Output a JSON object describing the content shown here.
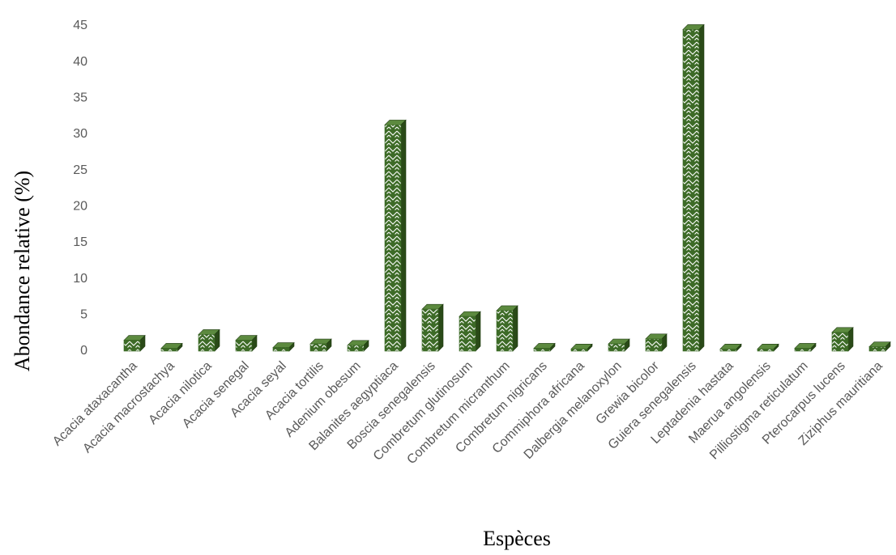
{
  "chart_data": {
    "type": "bar",
    "categories": [
      "Acacia ataxacantha",
      "Acacia macrostachya",
      "Acacia nilotica",
      "Acacia senegal",
      "Acacia seyal",
      "Acacia tortilis",
      "Adenium obesum",
      "Balanites aegyptiaca",
      "Boscia senegalensis",
      "Combretum glutinosum",
      "Combretum micranthum",
      "Combretum nigricans",
      "Commiphora africana",
      "Dalbergia melanoxylon",
      "Grewia bicolor",
      "Guiera senegalensis",
      "Leptadenia hastata",
      "Maerua angolensis",
      "Pilliostigma reticulatum",
      "Pterocarpus lucens",
      "Ziziphus mauritiana"
    ],
    "values": [
      1.5,
      0.4,
      2.3,
      1.5,
      0.5,
      1.0,
      0.8,
      31.3,
      5.8,
      4.8,
      5.6,
      0.4,
      0.3,
      1.0,
      1.7,
      44.5,
      0.3,
      0.3,
      0.4,
      2.6,
      0.6
    ],
    "color": "#3d6b27",
    "x_label": "Espèces",
    "y_label": "Abondance relative (%)",
    "ylim": [
      0,
      45
    ],
    "yticks": [
      0,
      5,
      10,
      15,
      20,
      25,
      30,
      35,
      40,
      45
    ],
    "grid": false
  }
}
